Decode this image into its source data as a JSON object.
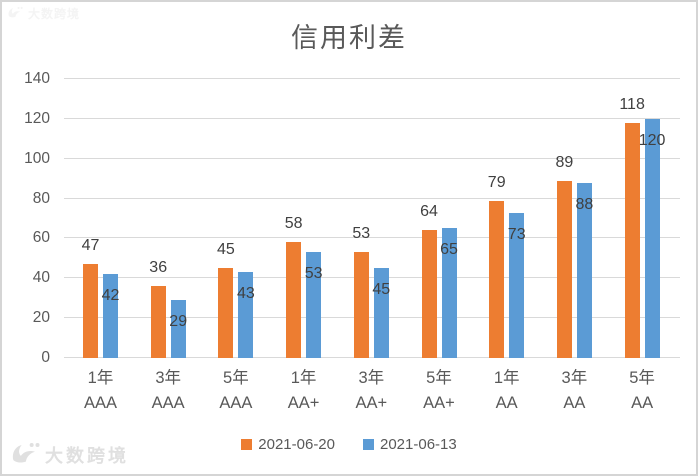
{
  "chart_data": {
    "type": "bar",
    "title": "信用利差",
    "categories": [
      {
        "term": "1年",
        "rating": "AAA"
      },
      {
        "term": "3年",
        "rating": "AAA"
      },
      {
        "term": "5年",
        "rating": "AAA"
      },
      {
        "term": "1年",
        "rating": "AA+"
      },
      {
        "term": "3年",
        "rating": "AA+"
      },
      {
        "term": "5年",
        "rating": "AA+"
      },
      {
        "term": "1年",
        "rating": "AA"
      },
      {
        "term": "3年",
        "rating": "AA"
      },
      {
        "term": "5年",
        "rating": "AA"
      }
    ],
    "series": [
      {
        "name": "2021-06-20",
        "color": "#ED7D31",
        "values": [
          47,
          36,
          45,
          58,
          53,
          64,
          79,
          89,
          118
        ]
      },
      {
        "name": "2021-06-13",
        "color": "#5B9BD5",
        "values": [
          42,
          29,
          43,
          53,
          45,
          65,
          73,
          88,
          120
        ]
      }
    ],
    "ylim": [
      0,
      140
    ],
    "yticks": [
      0,
      20,
      40,
      60,
      80,
      100,
      120,
      140
    ],
    "xlabel": "",
    "ylabel": "",
    "grid": true,
    "legend_position": "bottom",
    "gridline_color": "#d9d9d9",
    "value_label_color": "#404040",
    "axis_text_color": "#595959",
    "title_color": "#595959"
  },
  "watermark": {
    "brand": "大数跨境"
  }
}
